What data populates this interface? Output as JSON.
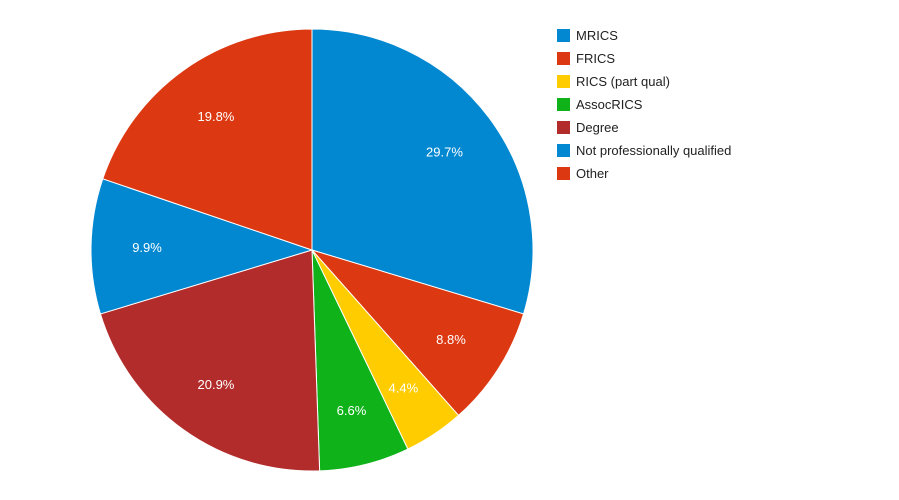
{
  "chart_data": {
    "type": "pie",
    "title": "",
    "legend_position": "right",
    "slices": [
      {
        "label": "MRICS",
        "value": 29.7,
        "display": "29.7%",
        "color": "#0288d1"
      },
      {
        "label": "FRICS",
        "value": 8.8,
        "display": "8.8%",
        "color": "#dc3912"
      },
      {
        "label": "RICS (part qual)",
        "value": 4.4,
        "display": "4.4%",
        "color": "#ffcc00"
      },
      {
        "label": "AssocRICS",
        "value": 6.6,
        "display": "6.6%",
        "color": "#10b21a"
      },
      {
        "label": "Degree",
        "value": 20.9,
        "display": "20.9%",
        "color": "#b32c2c"
      },
      {
        "label": "Not professionally qualified",
        "value": 9.9,
        "display": "9.9%",
        "color": "#0288d1"
      },
      {
        "label": "Other",
        "value": 19.8,
        "display": "19.8%",
        "color": "#dc3912"
      }
    ]
  }
}
